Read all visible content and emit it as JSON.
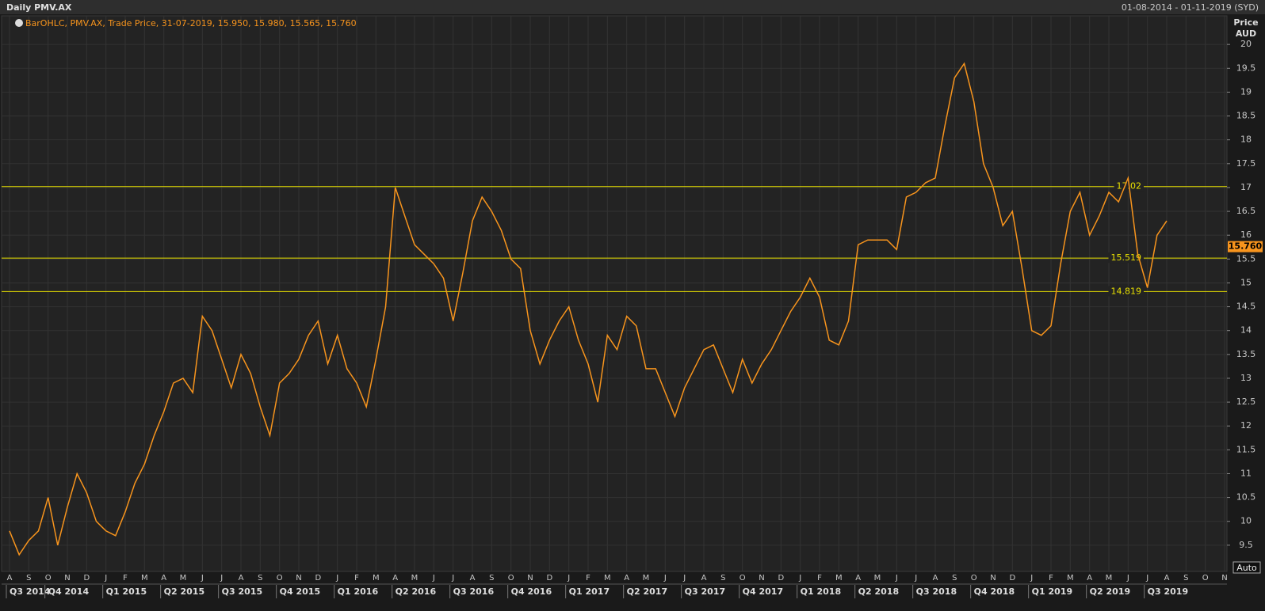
{
  "chart_data": {
    "type": "line",
    "title": "Daily PMV.AX",
    "date_range": "01-08-2014 - 01-11-2019 (SYD)",
    "legend_text": "BarOHLC, PMV.AX, Trade Price, 31-07-2019, 15.950, 15.980, 15.565, 15.760",
    "y_axis_label": [
      "Price",
      "AUD"
    ],
    "auto_button": "Auto",
    "categories": [
      "A",
      null,
      "S",
      null,
      "O",
      null,
      "N",
      null,
      "D",
      null,
      "J",
      null,
      "F",
      null,
      "M",
      null,
      "A",
      null,
      "M",
      null,
      "J",
      null,
      "J",
      null,
      "A",
      null,
      "S",
      null,
      "O",
      null,
      "N",
      null,
      "D",
      null,
      "J",
      null,
      "F",
      null,
      "M",
      null,
      "A",
      null,
      "M",
      null,
      "J",
      null,
      "J",
      null,
      "A",
      null,
      "S",
      null,
      "O",
      null,
      "N",
      null,
      "D",
      null,
      "J",
      null,
      "F",
      null,
      "M",
      null,
      "A",
      null,
      "M",
      null,
      "J",
      null,
      "J",
      null,
      "A",
      null,
      "S",
      null,
      "O",
      null,
      "N",
      null,
      "D",
      null,
      "J",
      null,
      "F",
      null,
      "M",
      null,
      "A",
      null,
      "M",
      null,
      "J",
      null,
      "J",
      null,
      "A",
      null,
      "S",
      null,
      "O",
      null,
      "N",
      null,
      "D",
      null,
      "J",
      null,
      "F",
      null,
      "M",
      null,
      "A",
      null,
      "M",
      null,
      "J",
      null,
      "J",
      null,
      "A",
      null,
      "S",
      null,
      "O",
      null,
      "N"
    ],
    "quarters": [
      "Q3 2014",
      "Q4 2014",
      "Q1 2015",
      "Q2 2015",
      "Q3 2015",
      "Q4 2015",
      "Q1 2016",
      "Q2 2016",
      "Q3 2016",
      "Q4 2016",
      "Q1 2017",
      "Q2 2017",
      "Q3 2017",
      "Q4 2017",
      "Q1 2018",
      "Q2 2018",
      "Q3 2018",
      "Q4 2018",
      "Q1 2019",
      "Q2 2019",
      "Q3 2019"
    ],
    "series": [
      {
        "name": "PMV.AX",
        "color": "#f7941d",
        "values": [
          9.8,
          9.3,
          9.6,
          9.8,
          10.5,
          9.5,
          10.3,
          11.0,
          10.6,
          10.0,
          9.8,
          9.7,
          10.2,
          10.8,
          11.2,
          11.8,
          12.3,
          12.9,
          13.0,
          12.7,
          14.3,
          14.0,
          13.4,
          12.8,
          13.5,
          13.1,
          12.4,
          11.8,
          12.9,
          13.1,
          13.4,
          13.9,
          14.2,
          13.3,
          13.9,
          13.2,
          12.9,
          12.4,
          13.4,
          14.5,
          17.0,
          16.4,
          15.8,
          15.6,
          15.4,
          15.1,
          14.2,
          15.2,
          16.3,
          16.8,
          16.5,
          16.1,
          15.5,
          15.3,
          14.0,
          13.3,
          13.8,
          14.2,
          14.5,
          13.8,
          13.3,
          12.5,
          13.9,
          13.6,
          14.3,
          14.1,
          13.2,
          13.2,
          12.7,
          12.2,
          12.8,
          13.2,
          13.6,
          13.7,
          13.2,
          12.7,
          13.4,
          12.9,
          13.3,
          13.6,
          14.0,
          14.4,
          14.7,
          15.1,
          14.7,
          13.8,
          13.7,
          14.2,
          15.8,
          15.9,
          15.9,
          15.9,
          15.7,
          16.8,
          16.9,
          17.1,
          17.2,
          18.3,
          19.3,
          19.6,
          18.8,
          17.5,
          17.0,
          16.2,
          16.5,
          15.3,
          14.0,
          13.9,
          14.1,
          15.4,
          16.5,
          16.9,
          16.0,
          16.4,
          16.9,
          16.7,
          17.2,
          15.6,
          14.9,
          16.0,
          16.3,
          null,
          null,
          null,
          null,
          null,
          null
        ]
      }
    ],
    "hlines": [
      17.02,
      15.519,
      14.819
    ],
    "hline_color": "#e8e000",
    "last_price": {
      "value": 15.76,
      "label": "15.760"
    },
    "ylim": [
      8.95,
      20.6
    ],
    "yticks": [
      9.5,
      10,
      10.5,
      11,
      11.5,
      12,
      12.5,
      13,
      13.5,
      14,
      14.5,
      15,
      15.5,
      16,
      16.5,
      17,
      17.5,
      18,
      18.5,
      19,
      19.5,
      20
    ],
    "grid": true
  }
}
